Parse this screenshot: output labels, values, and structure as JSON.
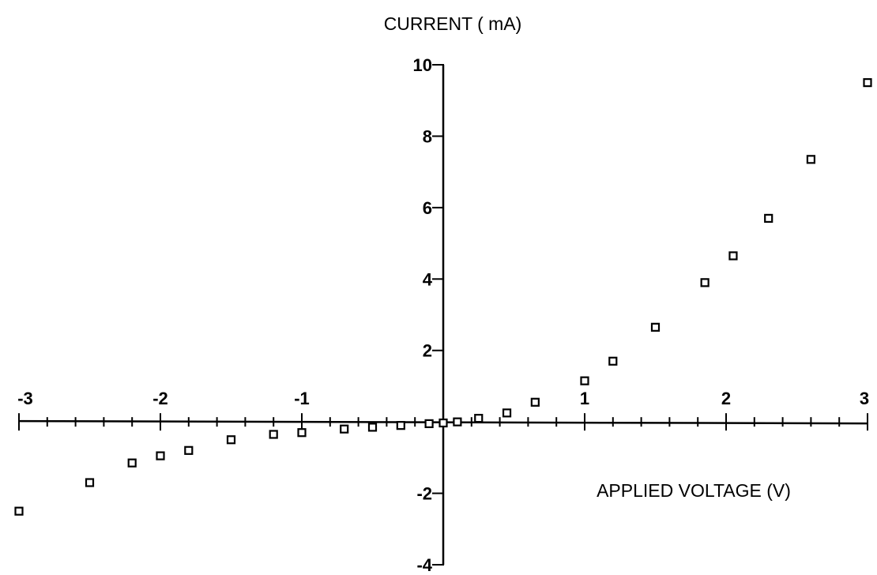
{
  "chart_data": {
    "type": "scatter",
    "title": "",
    "xlabel": "APPLIED VOLTAGE (V)",
    "ylabel": "CURRENT ( mA)",
    "xlim": [
      -3,
      3
    ],
    "ylim": [
      -4,
      10
    ],
    "x_ticks": [
      -3,
      -2,
      -1,
      1,
      2,
      3
    ],
    "x_tick_labels": [
      "-3",
      "-2",
      "-1",
      "1",
      "2",
      "3"
    ],
    "y_ticks": [
      -4,
      -2,
      2,
      4,
      6,
      8,
      10
    ],
    "y_tick_labels": [
      "-4",
      "-2",
      "2",
      "4",
      "6",
      "8",
      "10"
    ],
    "grid": false,
    "legend": false,
    "marker": "open-square",
    "x": [
      -3.0,
      -2.5,
      -2.2,
      -2.0,
      -1.8,
      -1.5,
      -1.2,
      -1.0,
      -0.7,
      -0.5,
      -0.3,
      -0.1,
      0.0,
      0.1,
      0.25,
      0.45,
      0.65,
      1.0,
      1.2,
      1.5,
      1.85,
      2.05,
      2.3,
      2.6,
      3.0
    ],
    "y": [
      -2.5,
      -1.7,
      -1.15,
      -0.95,
      -0.8,
      -0.5,
      -0.35,
      -0.3,
      -0.2,
      -0.15,
      -0.1,
      -0.05,
      -0.03,
      0.0,
      0.1,
      0.25,
      0.55,
      1.15,
      1.7,
      2.65,
      3.9,
      4.65,
      5.7,
      7.35,
      9.5
    ]
  }
}
